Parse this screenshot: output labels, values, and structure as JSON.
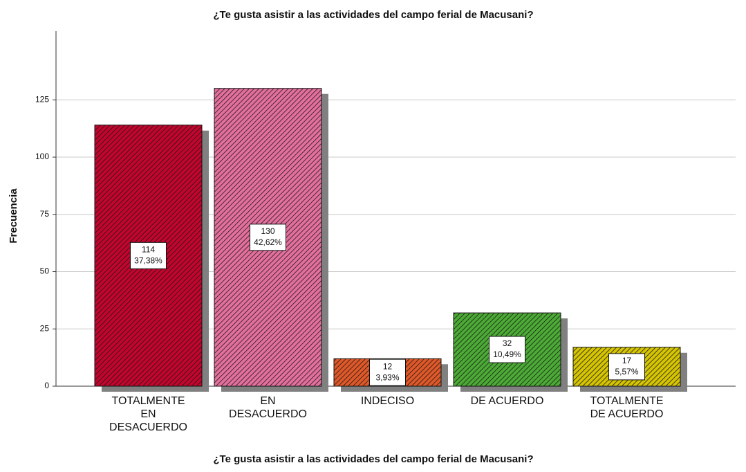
{
  "chart_data": {
    "type": "bar",
    "title": "¿Te gusta asistir a las actividades del campo ferial de Macusani?",
    "x_label": "¿Te gusta asistir a las actividades del campo ferial de Macusani?",
    "y_label": "Frecuencia",
    "categories": [
      [
        "TOTALMENTE",
        "EN",
        "DESACUERDO"
      ],
      [
        "EN",
        "DESACUERDO"
      ],
      [
        "INDECISO"
      ],
      [
        "DE ACUERDO"
      ],
      [
        "TOTALMENTE",
        "DE ACUERDO"
      ]
    ],
    "values": [
      114,
      130,
      12,
      32,
      17
    ],
    "percent_labels": [
      "37,38%",
      "42,62%",
      "3,93%",
      "10,49%",
      "5,57%"
    ],
    "colors": [
      "#c4042d",
      "#e46f9d",
      "#e05828",
      "#4bab35",
      "#d6c500"
    ],
    "ylim": [
      0,
      155
    ],
    "yticks": [
      0,
      25,
      50,
      75,
      100,
      125
    ],
    "grid": true
  }
}
